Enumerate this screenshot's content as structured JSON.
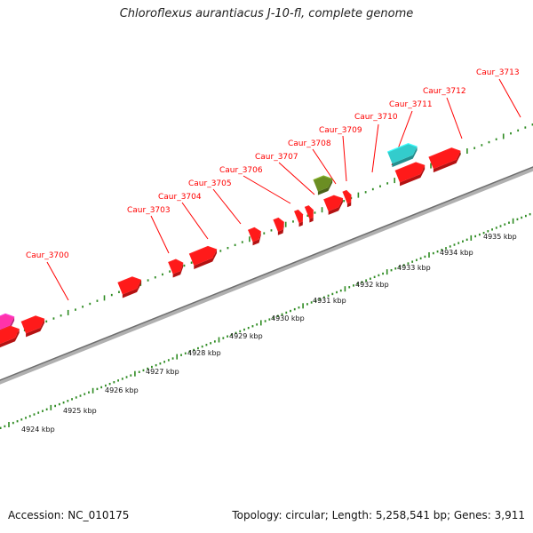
{
  "title": "Chloroflexus aurantiacus J-10-fl, complete genome",
  "footer": {
    "accession": "Accession: NC_010175",
    "summary": "Topology: circular; Length: 5,258,541 bp; Genes: 3,911"
  },
  "colors": {
    "background": "#ffffff",
    "backbone": "#8c8c8c",
    "tick": "#2e8b22",
    "gene_label": "#ff0000",
    "cds": "#ff1a1a",
    "trna": "#33cccc",
    "rrna": "#6b8e23",
    "other": "#ff33aa"
  },
  "scale": {
    "labels": [
      "4924 kbp",
      "4925 kbp",
      "4926 kbp",
      "4927 kbp",
      "4928 kbp",
      "4929 kbp",
      "4930 kbp",
      "4931 kbp",
      "4932 kbp",
      "4933 kbp",
      "4934 kbp",
      "4935 kbp"
    ]
  },
  "gene_labels": [
    "Caur_3700",
    "Caur_3703",
    "Caur_3704",
    "Caur_3705",
    "Caur_3706",
    "Caur_3707",
    "Caur_3708",
    "Caur_3709",
    "Caur_3710",
    "Caur_3711",
    "Caur_3712",
    "Caur_3713"
  ],
  "features": [
    {
      "kind": "other",
      "strand": "-",
      "start_kbp": 4924.3,
      "end_kbp": 4925.0
    },
    {
      "kind": "cds",
      "strand": "-",
      "start_kbp": 4924.3,
      "end_kbp": 4925.0
    },
    {
      "kind": "cds",
      "strand": "+",
      "start_kbp": 4925.1,
      "end_kbp": 4925.6
    },
    {
      "kind": "cds",
      "strand": "+",
      "start_kbp": 4927.4,
      "end_kbp": 4927.9
    },
    {
      "kind": "cds",
      "strand": "+",
      "start_kbp": 4928.6,
      "end_kbp": 4928.9
    },
    {
      "kind": "cds",
      "strand": "+",
      "start_kbp": 4929.1,
      "end_kbp": 4929.7
    },
    {
      "kind": "cds",
      "strand": "+",
      "start_kbp": 4930.5,
      "end_kbp": 4930.75
    },
    {
      "kind": "cds",
      "strand": "+",
      "start_kbp": 4931.1,
      "end_kbp": 4931.3
    },
    {
      "kind": "cds",
      "strand": "+",
      "start_kbp": 4931.6,
      "end_kbp": 4931.75
    },
    {
      "kind": "cds",
      "strand": "+",
      "start_kbp": 4931.85,
      "end_kbp": 4932.0
    },
    {
      "kind": "rrna",
      "strand": "+",
      "start_kbp": 4932.25,
      "end_kbp": 4932.65
    },
    {
      "kind": "cds",
      "strand": "+",
      "start_kbp": 4932.3,
      "end_kbp": 4932.7
    },
    {
      "kind": "cds",
      "strand": "+",
      "start_kbp": 4932.75,
      "end_kbp": 4932.9
    },
    {
      "kind": "trna",
      "strand": "+",
      "start_kbp": 4934.0,
      "end_kbp": 4934.65
    },
    {
      "kind": "cds",
      "strand": "+",
      "start_kbp": 4934.0,
      "end_kbp": 4934.65
    },
    {
      "kind": "cds",
      "strand": "+",
      "start_kbp": 4934.8,
      "end_kbp": 4935.5
    }
  ]
}
